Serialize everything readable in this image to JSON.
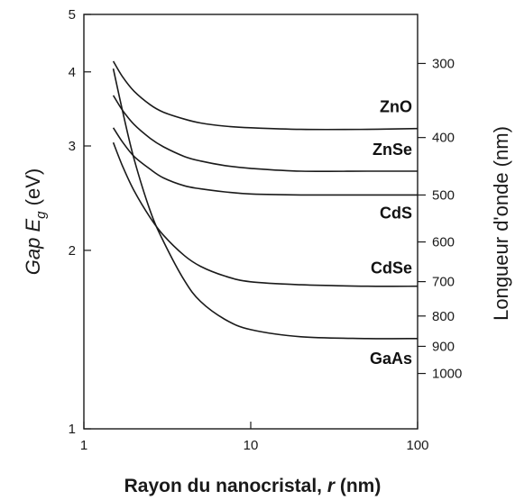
{
  "chart_data": {
    "type": "line",
    "xscale": "log",
    "yscale": "log",
    "xlim": [
      1,
      100
    ],
    "ylim": [
      1,
      5
    ],
    "grid": false,
    "ylabel": {
      "italic_part": "Gap E",
      "subscript": "g",
      "unit": " (eV)"
    },
    "y2label": "Longueur d'onde (nm)",
    "xlabel": {
      "main": "Rayon du nanocristal, ",
      "var": "r",
      "unit": " (nm)"
    },
    "xticks": [
      {
        "value": 1,
        "label": "1"
      },
      {
        "value": 10,
        "label": "10"
      },
      {
        "value": 100,
        "label": "100"
      }
    ],
    "yticks": [
      {
        "value": 1,
        "label": "1"
      },
      {
        "value": 2,
        "label": "2"
      },
      {
        "value": 3,
        "label": "3"
      },
      {
        "value": 4,
        "label": "4"
      },
      {
        "value": 5,
        "label": "5"
      }
    ],
    "y2ticks": [
      {
        "value": 300,
        "label": "300"
      },
      {
        "value": 400,
        "label": "400"
      },
      {
        "value": 500,
        "label": "500"
      },
      {
        "value": 600,
        "label": "600"
      },
      {
        "value": 700,
        "label": "700"
      },
      {
        "value": 800,
        "label": "800"
      },
      {
        "value": 900,
        "label": "900"
      },
      {
        "value": 1000,
        "label": "1000"
      }
    ],
    "series": [
      {
        "name": "ZnO",
        "x": [
          1.5,
          1.7,
          2,
          2.5,
          3,
          4,
          5,
          7,
          10,
          20,
          50,
          100
        ],
        "y": [
          4.17,
          3.93,
          3.71,
          3.52,
          3.42,
          3.33,
          3.28,
          3.24,
          3.22,
          3.2,
          3.2,
          3.21
        ]
      },
      {
        "name": "ZnSe",
        "x": [
          1.5,
          1.7,
          2,
          2.5,
          3,
          4,
          5,
          7,
          10,
          20,
          50,
          100
        ],
        "y": [
          3.65,
          3.45,
          3.26,
          3.09,
          2.99,
          2.88,
          2.83,
          2.78,
          2.75,
          2.72,
          2.72,
          2.72
        ]
      },
      {
        "name": "CdS",
        "x": [
          1.5,
          1.7,
          2,
          2.5,
          3,
          4,
          5,
          7,
          10,
          20,
          50,
          100
        ],
        "y": [
          3.22,
          3.05,
          2.88,
          2.74,
          2.65,
          2.57,
          2.54,
          2.51,
          2.49,
          2.48,
          2.48,
          2.48
        ]
      },
      {
        "name": "CdSe",
        "x": [
          1.5,
          1.7,
          2,
          2.5,
          3,
          4,
          5,
          7,
          10,
          20,
          50,
          100
        ],
        "y": [
          3.04,
          2.78,
          2.52,
          2.27,
          2.12,
          1.96,
          1.88,
          1.81,
          1.77,
          1.75,
          1.74,
          1.74
        ]
      },
      {
        "name": "GaAs",
        "x": [
          1.5,
          1.7,
          2,
          2.5,
          3,
          4,
          5,
          7,
          10,
          20,
          50,
          100
        ],
        "y": [
          4.05,
          3.45,
          2.85,
          2.33,
          2.07,
          1.78,
          1.64,
          1.53,
          1.47,
          1.43,
          1.42,
          1.42
        ]
      }
    ]
  }
}
